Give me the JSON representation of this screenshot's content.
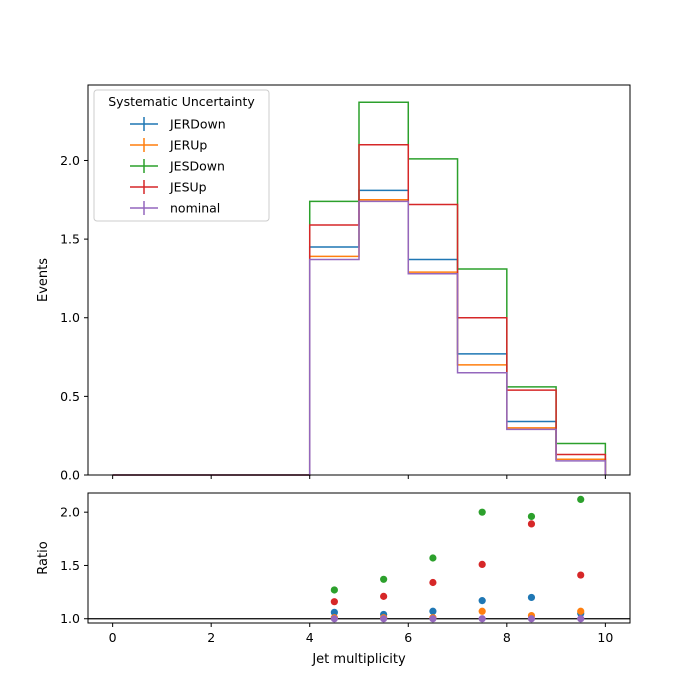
{
  "legend": {
    "title": "Systematic Uncertainty",
    "placement": "upper-left"
  },
  "chart_data": [
    {
      "type": "step",
      "xlabel": "",
      "ylabel": "Events",
      "xlim": [
        -0.5,
        10.5
      ],
      "ylim": [
        0,
        2.48
      ],
      "x_ticks": [
        0,
        2,
        4,
        6,
        8,
        10
      ],
      "y_ticks": [
        0.0,
        0.5,
        1.0,
        1.5,
        2.0
      ],
      "y_tick_labels": [
        "0.0",
        "0.5",
        "1.0",
        "1.5",
        "2.0"
      ],
      "bin_edges": [
        0,
        1,
        2,
        3,
        4,
        5,
        6,
        7,
        8,
        9,
        10
      ],
      "series": [
        {
          "name": "JERDown",
          "color": "#1f77b4",
          "values": [
            0,
            0,
            0,
            0,
            1.45,
            1.81,
            1.37,
            0.77,
            0.34,
            0.1
          ]
        },
        {
          "name": "JERUp",
          "color": "#ff7f0e",
          "values": [
            0,
            0,
            0,
            0,
            1.39,
            1.75,
            1.29,
            0.7,
            0.3,
            0.1
          ]
        },
        {
          "name": "JESDown",
          "color": "#2ca02c",
          "values": [
            0,
            0,
            0,
            0,
            1.74,
            2.37,
            2.01,
            1.31,
            0.56,
            0.2
          ]
        },
        {
          "name": "JESUp",
          "color": "#d62728",
          "values": [
            0,
            0,
            0,
            0,
            1.59,
            2.1,
            1.72,
            1.0,
            0.54,
            0.13
          ]
        },
        {
          "name": "nominal",
          "color": "#9467bd",
          "values": [
            0,
            0,
            0,
            0,
            1.37,
            1.74,
            1.28,
            0.65,
            0.29,
            0.09
          ]
        }
      ]
    },
    {
      "type": "scatter",
      "xlabel": "Jet multiplicity",
      "ylabel": "Ratio",
      "xlim": [
        -0.5,
        10.5
      ],
      "ylim": [
        0.96,
        2.18
      ],
      "x_ticks": [
        0,
        2,
        4,
        6,
        8,
        10
      ],
      "x_tick_labels": [
        "0",
        "2",
        "4",
        "6",
        "8",
        "10"
      ],
      "y_ticks": [
        1.0,
        1.5,
        2.0
      ],
      "y_tick_labels": [
        "1.0",
        "1.5",
        "2.0"
      ],
      "reference_line": 1.0,
      "x": [
        4.5,
        5.5,
        6.5,
        7.5,
        8.5,
        9.5
      ],
      "series": [
        {
          "name": "JERDown",
          "color": "#1f77b4",
          "values": [
            1.06,
            1.04,
            1.07,
            1.17,
            1.2,
            1.05
          ]
        },
        {
          "name": "JERUp",
          "color": "#ff7f0e",
          "values": [
            1.01,
            1.01,
            1.01,
            1.07,
            1.03,
            1.07
          ]
        },
        {
          "name": "JESDown",
          "color": "#2ca02c",
          "values": [
            1.27,
            1.37,
            1.57,
            2.0,
            1.96,
            2.12
          ]
        },
        {
          "name": "JESUp",
          "color": "#d62728",
          "values": [
            1.16,
            1.21,
            1.34,
            1.51,
            1.89,
            1.41
          ]
        },
        {
          "name": "nominal",
          "color": "#9467bd",
          "values": [
            1.0,
            1.0,
            1.0,
            1.0,
            1.0,
            1.0
          ]
        }
      ]
    }
  ]
}
